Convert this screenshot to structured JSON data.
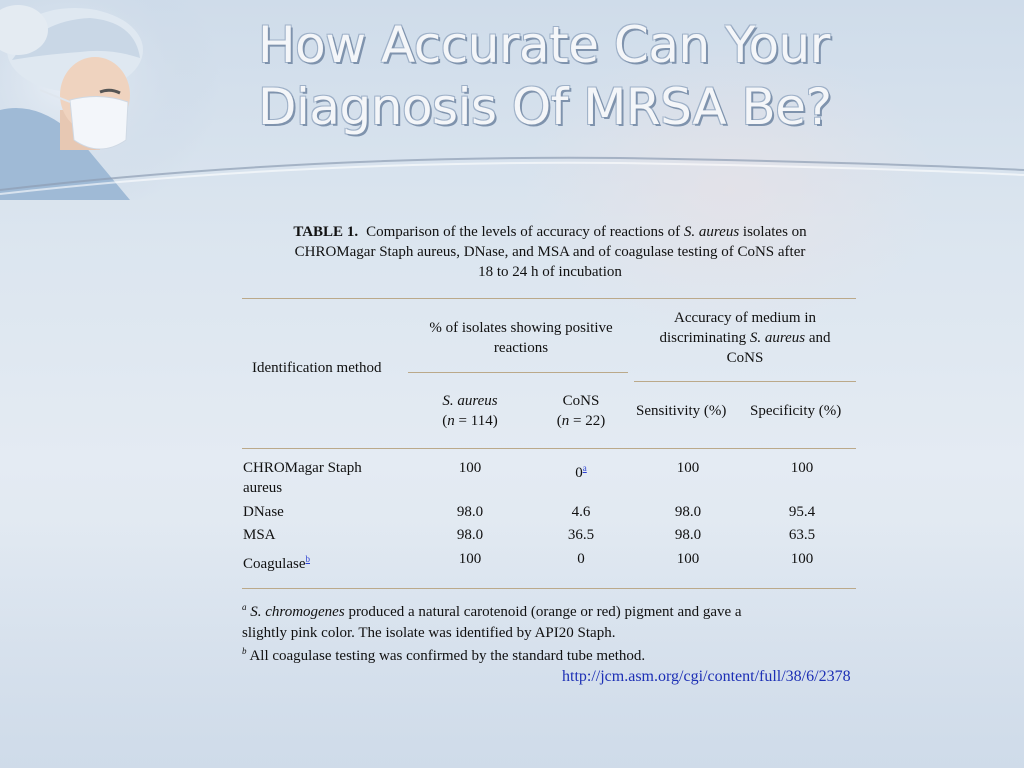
{
  "slide": {
    "title_line1": "How Accurate Can Your",
    "title_line2": "Diagnosis Of MRSA Be?",
    "url": "http://jcm.asm.org/cgi/content/full/38/6/2378"
  },
  "table": {
    "caption_label": "TABLE 1.",
    "caption_part1": "Comparison of the levels of accuracy of reactions of",
    "caption_italic": "S. aureus",
    "caption_part2": "isolates on",
    "caption_line2": "CHROMagar Staph aureus, DNase, and MSA and of coagulase testing of CoNS after",
    "caption_line3": "18 to 24 h of incubation",
    "header_method": "Identification method",
    "header_pct_line1": "% of isolates showing positive",
    "header_pct_line2": "reactions",
    "header_acc_line1": "Accuracy of medium in",
    "header_acc_line2a": "discriminating",
    "header_acc_line2b": "S. aureus",
    "header_acc_line2c": "and",
    "header_acc_line3": "CoNS",
    "sub_saureus": "S. aureus",
    "sub_saureus_n": "n",
    "sub_saureus_nval": " = 114)",
    "sub_cons": "CoNS",
    "sub_cons_n": "n",
    "sub_cons_nval": " = 22)",
    "sub_sens": "Sensitivity (%)",
    "sub_spec": "Specificity (%)",
    "rows": [
      {
        "method_line1": "CHROMagar Staph",
        "method_line2": "aureus",
        "saureus": "100",
        "cons": "0",
        "cons_sup": "a",
        "sens": "100",
        "spec": "100"
      },
      {
        "method": "DNase",
        "saureus": "98.0",
        "cons": "4.6",
        "sens": "98.0",
        "spec": "95.4"
      },
      {
        "method": "MSA",
        "saureus": "98.0",
        "cons": "36.5",
        "sens": "98.0",
        "spec": "63.5"
      },
      {
        "method": "Coagulase",
        "method_sup": "b",
        "saureus": "100",
        "cons": "0",
        "sens": "100",
        "spec": "100"
      }
    ],
    "footnote_a_mark": "a",
    "footnote_a_italic": "S. chromogenes",
    "footnote_a_text1": "produced a natural carotenoid (orange or red) pigment and gave a",
    "footnote_a_text2": "slightly pink color. The isolate was identified by API20 Staph.",
    "footnote_b_mark": "b",
    "footnote_b_text": "All coagulase testing was confirmed by the standard tube method."
  }
}
